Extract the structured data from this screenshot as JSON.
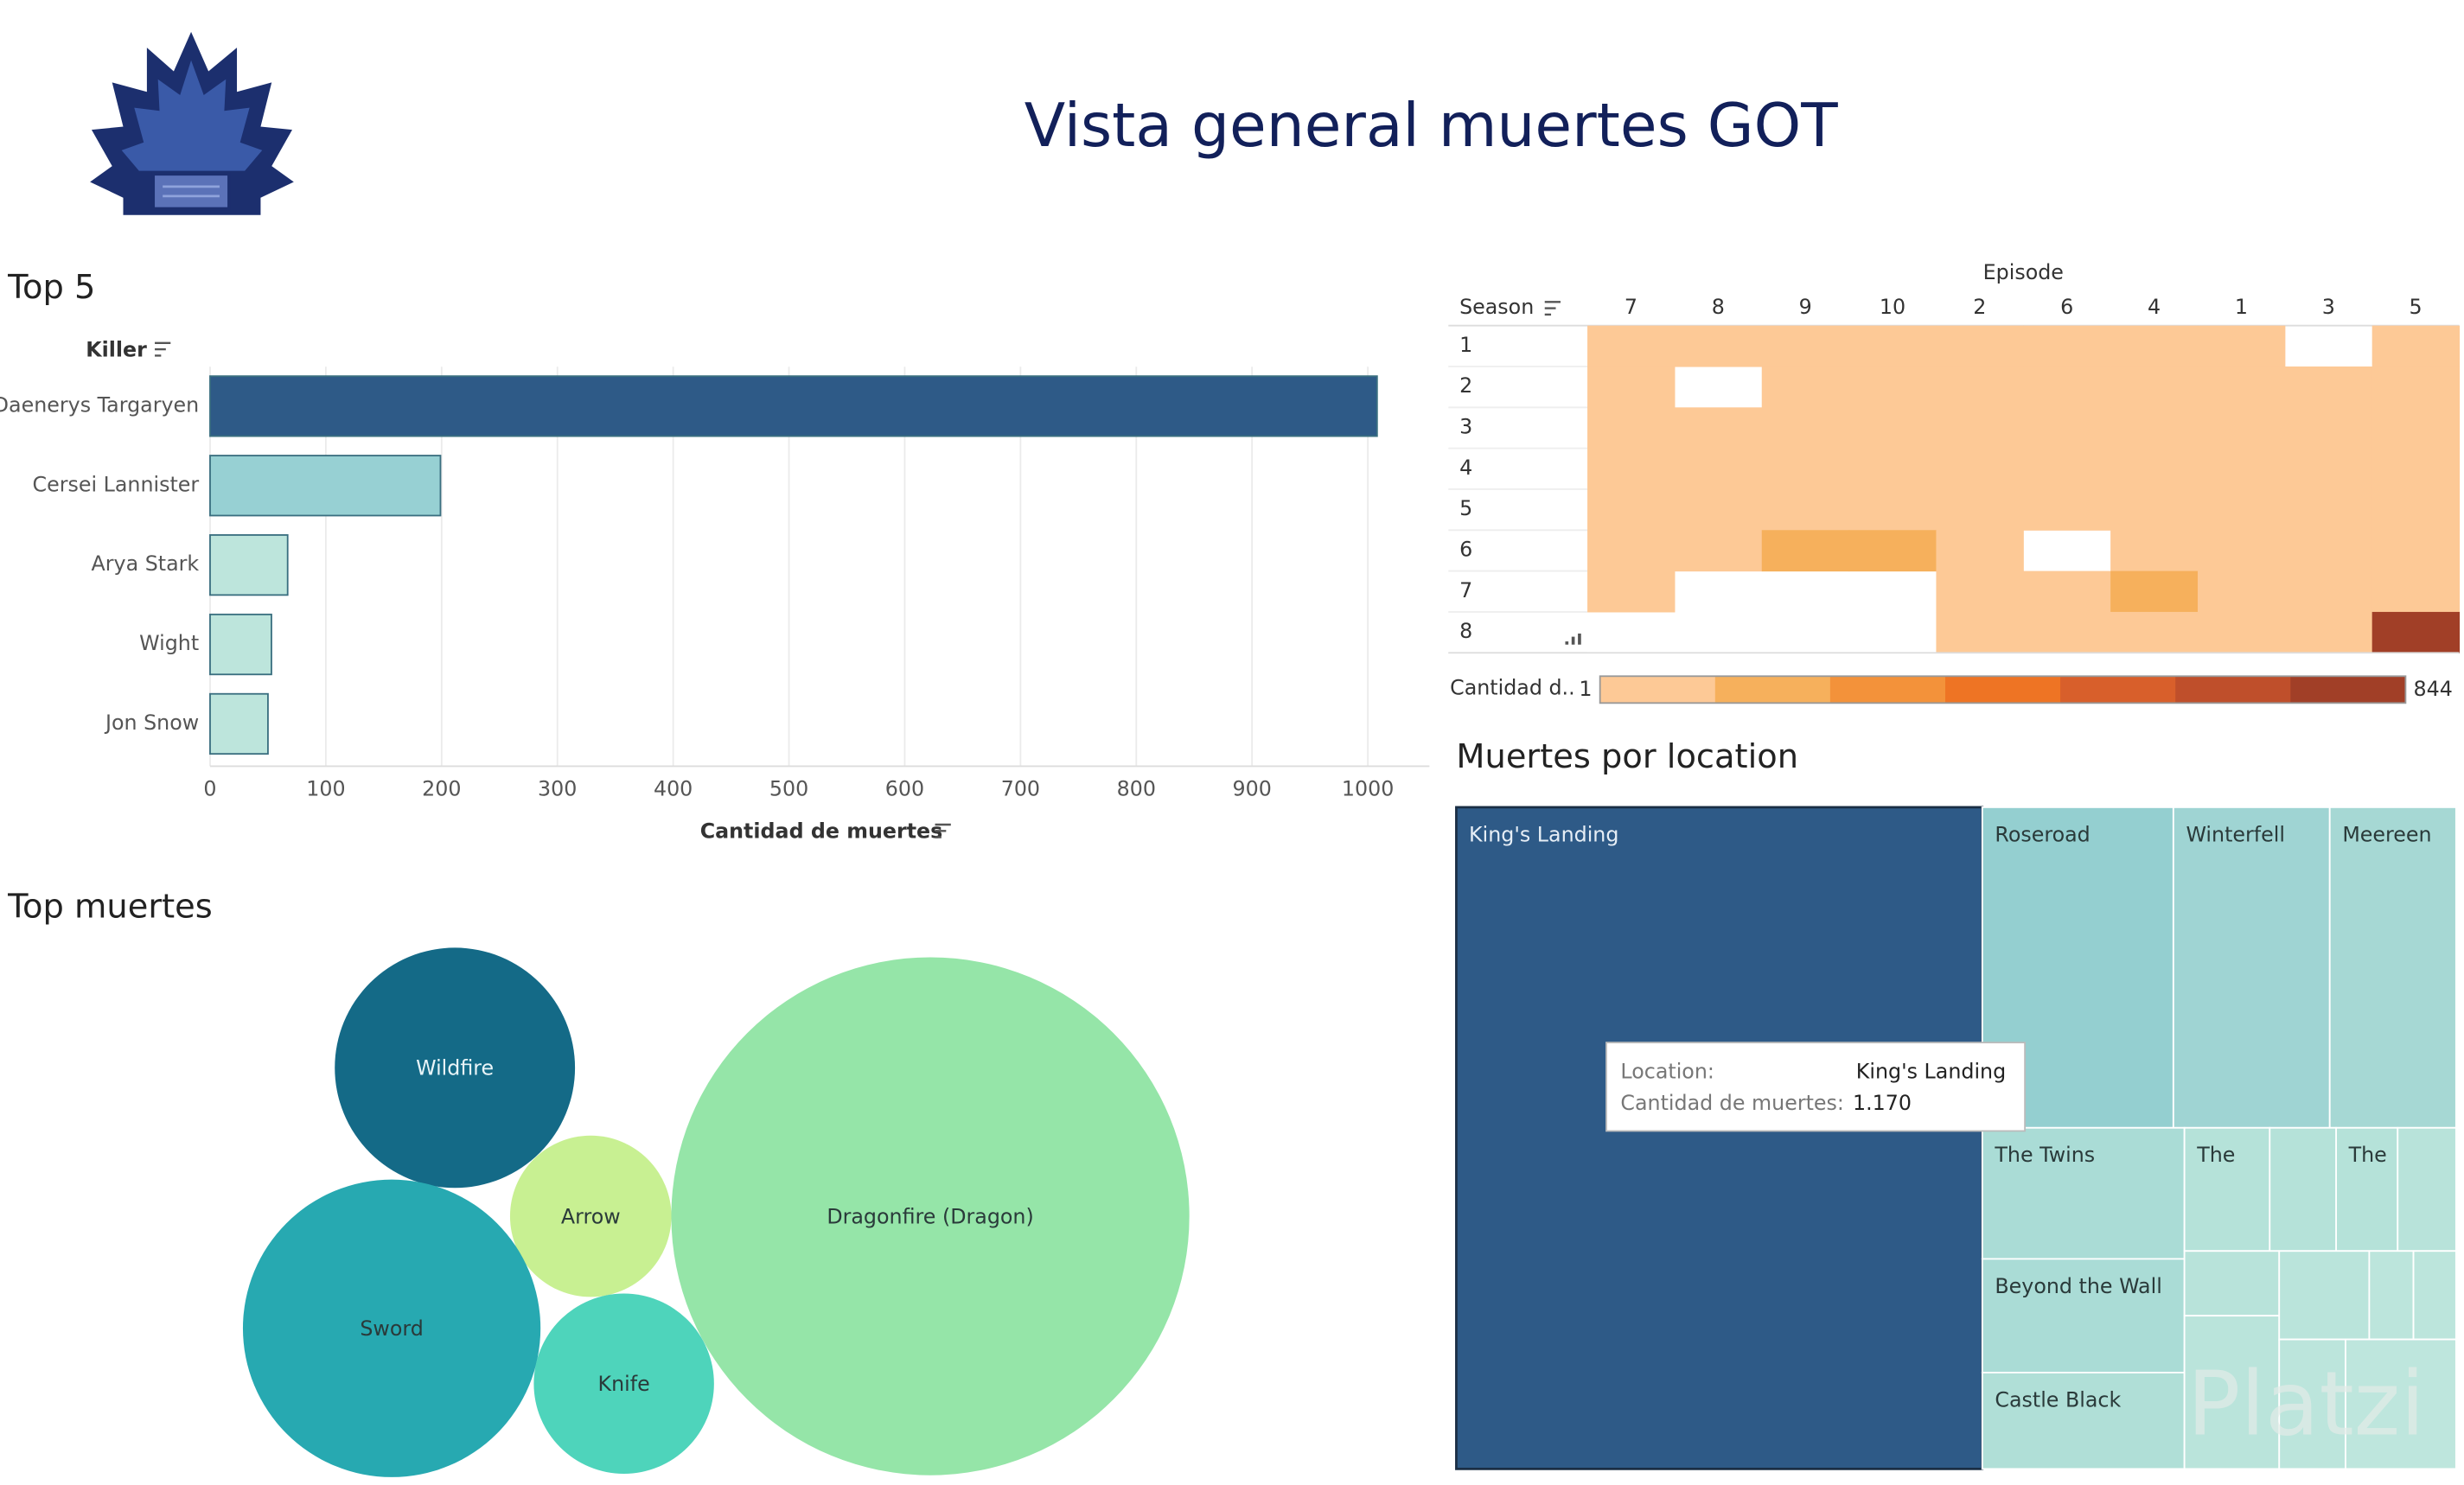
{
  "header": {
    "title": "Vista general muertes GOT",
    "watermark": "Platzi"
  },
  "chart_data": [
    {
      "type": "bar",
      "title": "Top 5",
      "y_label": "Killer",
      "x_label": "Cantidad de muertes",
      "categories": [
        "Daenerys Targaryen",
        "Cersei Lannister",
        "Arya Stark",
        "Wight",
        "Jon Snow"
      ],
      "values": [
        1008,
        199,
        67,
        53,
        50
      ],
      "colors": [
        "#2e5a87",
        "#97d0d3",
        "#bde5dc",
        "#bde5dc",
        "#bde5dc"
      ],
      "xlim": [
        0,
        1050
      ],
      "xticks": [
        0,
        100,
        200,
        300,
        400,
        500,
        600,
        700,
        800,
        900,
        1000
      ],
      "grid": true
    },
    {
      "type": "heatmap",
      "x_label": "Episode",
      "y_label": "Season",
      "x": [
        7,
        8,
        9,
        10,
        2,
        6,
        4,
        1,
        3,
        5
      ],
      "y": [
        1,
        2,
        3,
        4,
        5,
        6,
        7,
        8
      ],
      "values": [
        [
          20,
          25,
          30,
          40,
          15,
          18,
          22,
          35,
          null,
          28
        ],
        [
          30,
          null,
          60,
          45,
          20,
          25,
          30,
          40,
          35,
          30
        ],
        [
          25,
          40,
          90,
          50,
          15,
          20,
          30,
          35,
          40,
          30
        ],
        [
          40,
          45,
          50,
          60,
          30,
          25,
          35,
          40,
          30,
          35
        ],
        [
          30,
          60,
          80,
          90,
          20,
          25,
          30,
          35,
          40,
          30
        ],
        [
          35,
          40,
          150,
          160,
          25,
          null,
          30,
          30,
          40,
          45
        ],
        [
          40,
          null,
          null,
          null,
          50,
          60,
          180,
          20,
          40,
          45
        ],
        [
          null,
          null,
          null,
          null,
          40,
          60,
          30,
          20,
          90,
          844
        ]
      ],
      "legend_label": "Cantidad d..",
      "color_range": [
        1,
        844
      ],
      "colors": [
        "#fdc996",
        "#f6b05c",
        "#f3923a",
        "#ee7424",
        "#d85f2b",
        "#bf4f2b",
        "#a13f27"
      ]
    },
    {
      "type": "bubble",
      "title": "Top muertes",
      "categories": [
        "Wildfire",
        "Arrow",
        "Dragonfire (Dragon)",
        "Sword",
        "Knife"
      ],
      "values": [
        215,
        97,
        1000,
        330,
        121
      ],
      "colors": [
        "#146a87",
        "#c8f092",
        "#95e5a8",
        "#27a9b1",
        "#4ed4bb"
      ]
    },
    {
      "type": "treemap",
      "title": "Muertes por location",
      "labels": [
        "King's Landing",
        "Roseroad",
        "Winterfell",
        "Meereen",
        "The Twins",
        "Beyond the Wall",
        "Castle Black",
        "The",
        "The",
        null,
        null,
        null,
        null,
        null,
        null,
        null,
        null,
        null
      ],
      "values": [
        1170,
        206,
        169,
        136,
        89,
        77,
        65,
        35,
        26,
        27,
        24,
        21,
        49,
        27,
        13,
        13,
        29,
        48
      ],
      "value_labels": [
        "1.170",
        null,
        null,
        null,
        null,
        null,
        null,
        null,
        null,
        null,
        null,
        null,
        null,
        null,
        null,
        null,
        null,
        null
      ],
      "colors": [
        "#2e5a87",
        "#94cfd0",
        "#9fd4d3",
        "#a6d8d4",
        "#aadcd6",
        "#aadcd6",
        "#b0dfd7",
        "#b5e2d9",
        "#b5e2d9",
        "#b5e2d9",
        "#b8e3da",
        "#b8e3da",
        "#bae4db",
        "#bae4db",
        "#bce5dc",
        "#bce5dc",
        "#bce5dc",
        "#bee6dd"
      ],
      "tooltip": {
        "location_label": "Location:",
        "value_label": "Cantidad de muertes:"
      }
    }
  ]
}
